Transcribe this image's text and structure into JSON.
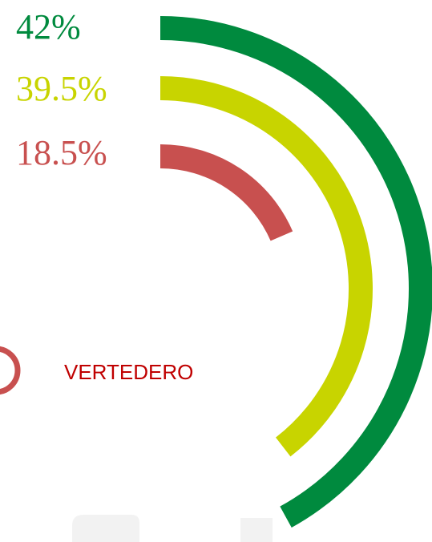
{
  "chart_data": {
    "type": "radial-bar",
    "categories": [
      null,
      null,
      null
    ],
    "values": [
      42,
      39.5,
      18.5
    ],
    "value_labels": [
      "42%",
      "39.5%",
      "18.5%"
    ],
    "colors": [
      "#008a3e",
      "#c8d400",
      "#c8504f"
    ],
    "label": "VERTEDERO"
  }
}
